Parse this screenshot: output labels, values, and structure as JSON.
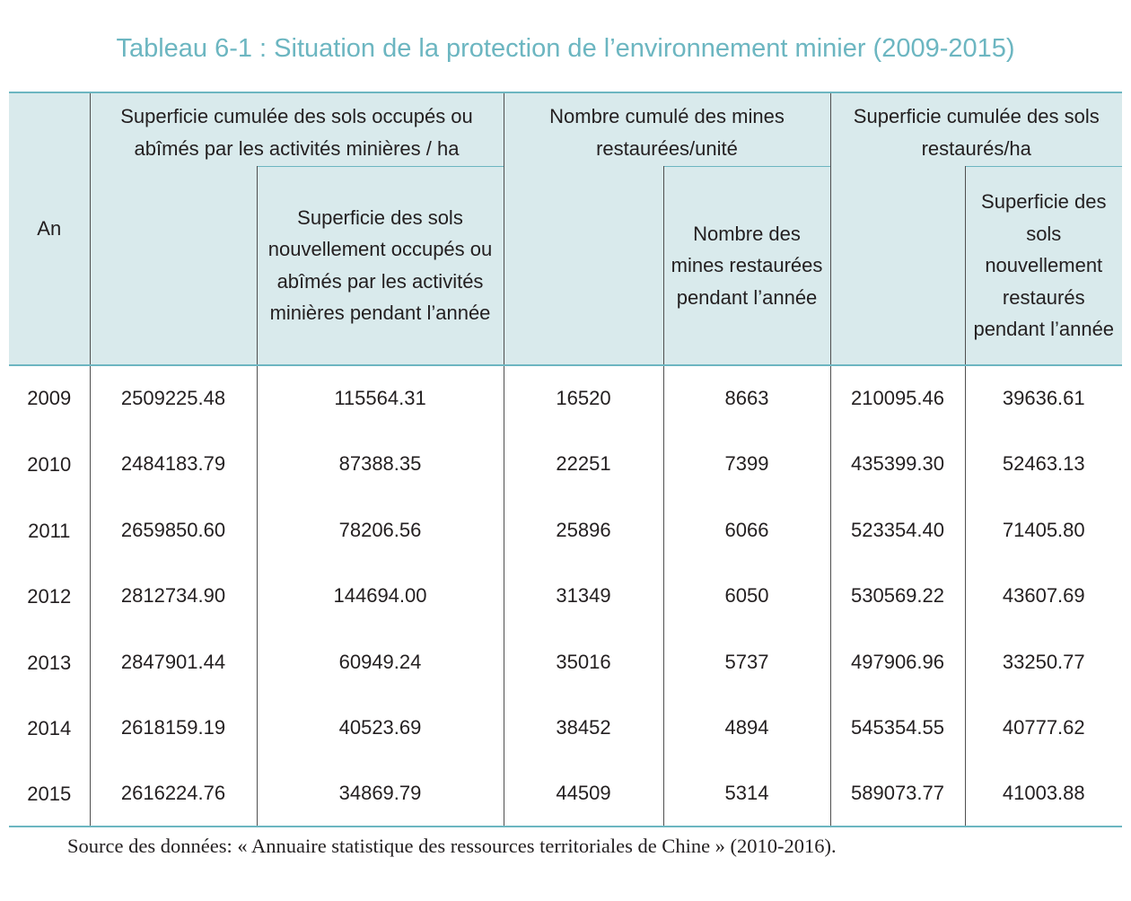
{
  "title": "Tableau 6-1 : Situation de la protection de l’environnement minier (2009-2015)",
  "table": {
    "header": {
      "year_label": "An",
      "group1": "Superficie cumulée des sols occupés ou abîmés par les activités minières / ha",
      "group2": "Nombre cumulé des mines restaurées/unité",
      "group3": "Superficie cumulée des sols restaurés/ha",
      "sub1": "Superficie des sols nouvellement occupés ou abîmés par les activités minières pendant l’année",
      "sub2": "Nombre des mines restaurées pendant l’année",
      "sub3": "Superficie des sols nouvellement restaurés pendant l’année"
    },
    "rows": [
      {
        "year": "2009",
        "c1": "2509225.48",
        "c2": "115564.31",
        "c3": "16520",
        "c4": "8663",
        "c5": "210095.46",
        "c6": "39636.61"
      },
      {
        "year": "2010",
        "c1": "2484183.79",
        "c2": "87388.35",
        "c3": "22251",
        "c4": "7399",
        "c5": "435399.30",
        "c6": "52463.13"
      },
      {
        "year": "2011",
        "c1": "2659850.60",
        "c2": "78206.56",
        "c3": "25896",
        "c4": "6066",
        "c5": "523354.40",
        "c6": "71405.80"
      },
      {
        "year": "2012",
        "c1": "2812734.90",
        "c2": "144694.00",
        "c3": "31349",
        "c4": "6050",
        "c5": "530569.22",
        "c6": "43607.69"
      },
      {
        "year": "2013",
        "c1": "2847901.44",
        "c2": "60949.24",
        "c3": "35016",
        "c4": "5737",
        "c5": "497906.96",
        "c6": "33250.77"
      },
      {
        "year": "2014",
        "c1": "2618159.19",
        "c2": "40523.69",
        "c3": "38452",
        "c4": "4894",
        "c5": "545354.55",
        "c6": "40777.62"
      },
      {
        "year": "2015",
        "c1": "2616224.76",
        "c2": "34869.79",
        "c3": "44509",
        "c4": "5314",
        "c5": "589073.77",
        "c6": "41003.88"
      }
    ]
  },
  "source": "Source des données: « Annuaire statistique des ressources territoriales de Chine » (2010-2016)."
}
